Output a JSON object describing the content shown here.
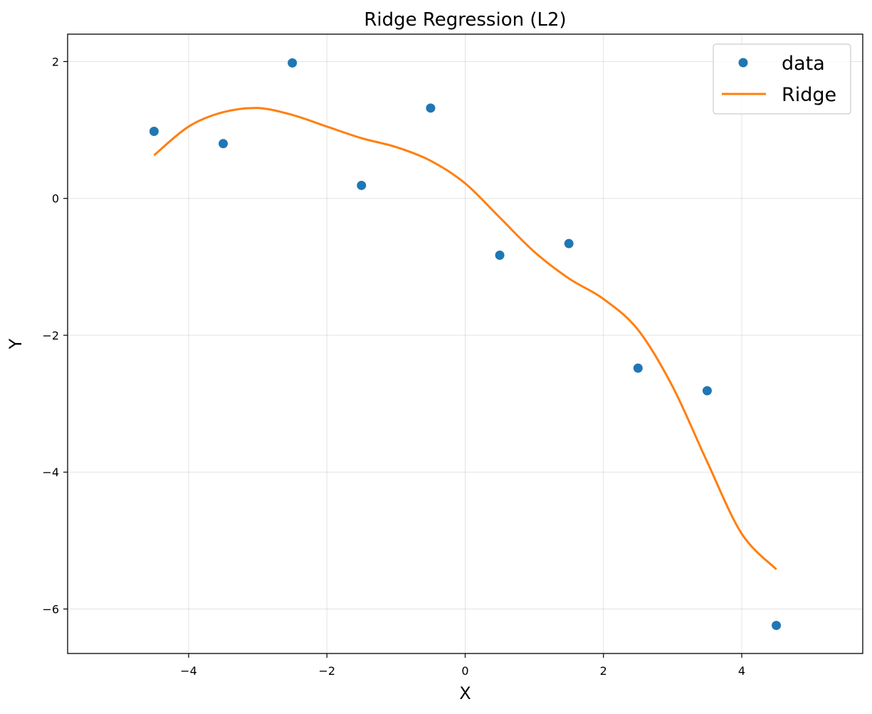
{
  "chart_data": {
    "type": "scatter+line",
    "title": "Ridge Regression (L2)",
    "xlabel": "X",
    "ylabel": "Y",
    "xlim": [
      -5.75,
      5.75
    ],
    "ylim": [
      -6.65,
      2.4
    ],
    "xticks": [
      -4,
      -2,
      0,
      2,
      4
    ],
    "yticks": [
      -6,
      -4,
      -2,
      0,
      2
    ],
    "xtick_labels": [
      "−4",
      "−2",
      "0",
      "2",
      "4"
    ],
    "ytick_labels": [
      "−6",
      "−4",
      "−2",
      "0",
      "2"
    ],
    "grid": true,
    "legend": {
      "position": "top-right",
      "entries": [
        "data",
        "Ridge"
      ]
    },
    "series": [
      {
        "name": "data",
        "kind": "scatter",
        "color": "#1f77b4",
        "x": [
          -4.5,
          -3.5,
          -2.5,
          -1.5,
          -0.5,
          0.5,
          1.5,
          2.5,
          3.5,
          4.5
        ],
        "y": [
          0.98,
          0.8,
          1.98,
          0.19,
          1.32,
          -0.83,
          -0.66,
          -2.48,
          -2.81,
          -6.24
        ]
      },
      {
        "name": "Ridge",
        "kind": "line",
        "color": "#ff7f0e",
        "x": [
          -4.5,
          -4.0,
          -3.5,
          -3.0,
          -2.5,
          -2.0,
          -1.5,
          -1.0,
          -0.5,
          0.0,
          0.5,
          1.0,
          1.5,
          2.0,
          2.5,
          3.0,
          3.5,
          4.0,
          4.5
        ],
        "y": [
          0.63,
          1.05,
          1.26,
          1.32,
          1.22,
          1.05,
          0.88,
          0.75,
          0.55,
          0.22,
          -0.28,
          -0.78,
          -1.17,
          -1.47,
          -1.92,
          -2.75,
          -3.85,
          -4.9,
          -5.42
        ]
      }
    ]
  }
}
